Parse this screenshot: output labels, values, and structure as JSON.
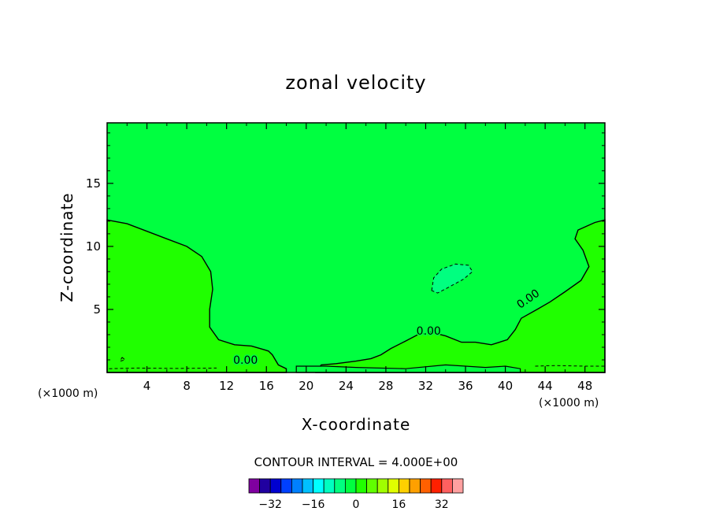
{
  "chart_data": {
    "type": "heatmap",
    "title": "zonal velocity",
    "xlabel": "X-coordinate",
    "ylabel": "Z-coordinate",
    "x_units": "(×1000 m)",
    "x_ticks": [
      4,
      8,
      12,
      16,
      20,
      24,
      28,
      32,
      36,
      40,
      44,
      48
    ],
    "y_ticks": [
      5,
      10,
      15
    ],
    "xlim": [
      0,
      50
    ],
    "ylim": [
      0,
      19.8
    ],
    "contour_interval_label": "CONTOUR INTERVAL = 4.000E+00",
    "contour_labels": [
      {
        "text": "0.00",
        "x": 13.9,
        "z": 0.7
      },
      {
        "text": "0.00",
        "x": 32.3,
        "z": 3.0
      },
      {
        "text": "0.00",
        "x": 42.5,
        "z": 5.6
      }
    ],
    "regions": [
      {
        "label": "background",
        "value": 0,
        "color": "#00ff40"
      },
      {
        "label": "left positive region",
        "value": 4,
        "color": "#20ff00"
      },
      {
        "label": "right positive region",
        "value": 4,
        "color": "#20ff00"
      },
      {
        "label": "negative patch",
        "value": -4,
        "color": "#00ff80"
      }
    ],
    "colorbar": {
      "colors": [
        "#7f00a0",
        "#2000a0",
        "#0000d0",
        "#0040ff",
        "#0080ff",
        "#00c0ff",
        "#00ffff",
        "#00ffc0",
        "#00ff80",
        "#00ff40",
        "#20ff00",
        "#60ff00",
        "#a0ff00",
        "#e0ff00",
        "#ffd000",
        "#ffa000",
        "#ff6000",
        "#ff2000",
        "#ff6060",
        "#ffa0a0"
      ],
      "tick_labels": [
        "−32",
        "−16",
        "0",
        "16",
        "32"
      ],
      "tick_values": [
        -32,
        -16,
        0,
        16,
        32
      ]
    }
  }
}
